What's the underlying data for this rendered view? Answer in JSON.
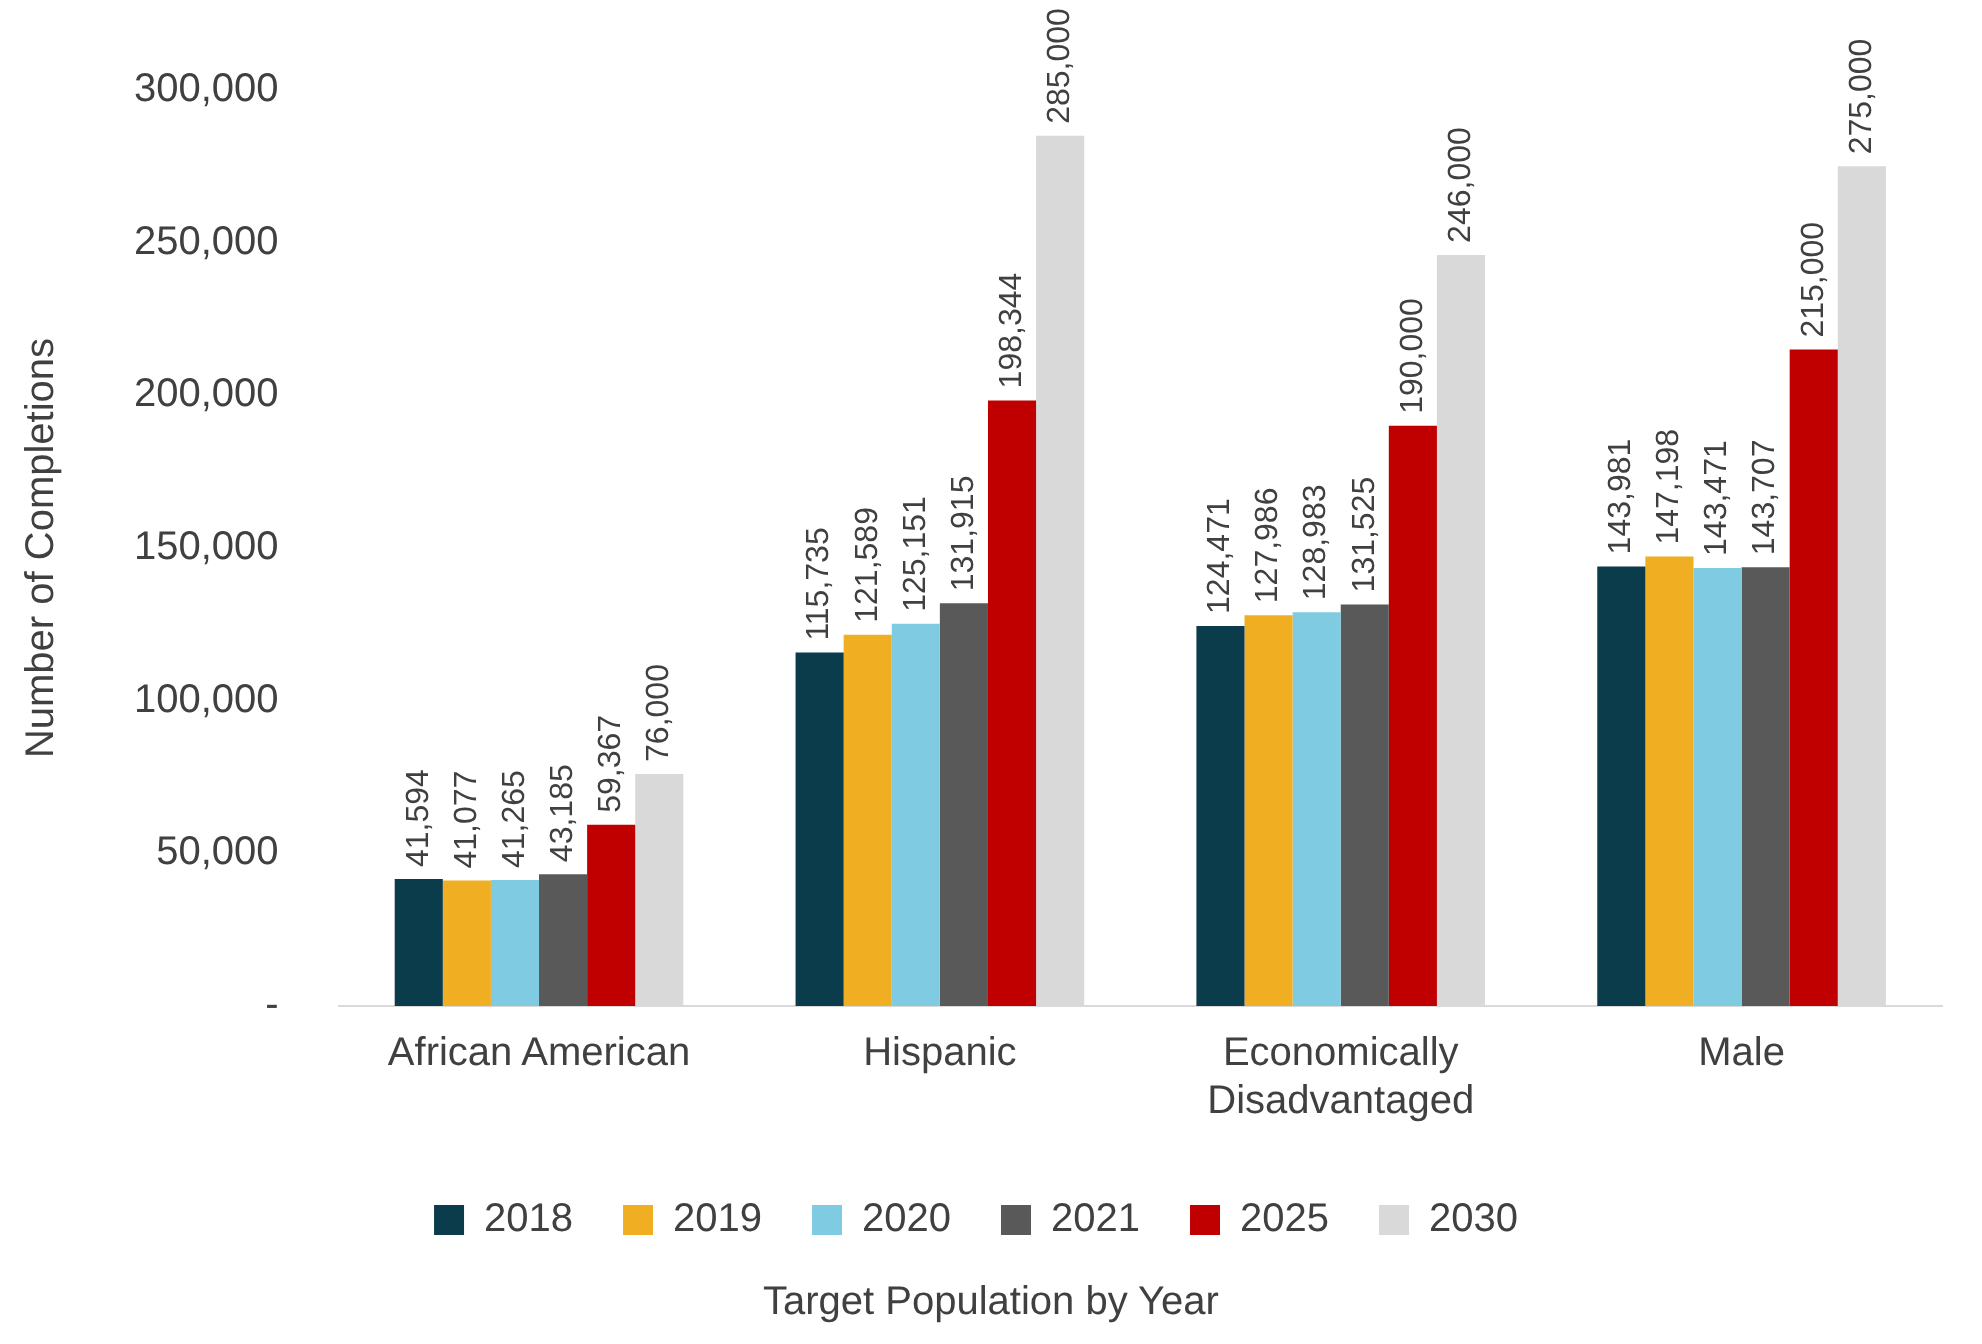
{
  "chart_data": {
    "type": "bar",
    "xlabel": "Target Population by Year",
    "ylabel": "Number of Completions",
    "categories": [
      "African American",
      "Hispanic",
      "Economically Disadvantaged",
      "Male"
    ],
    "series": [
      {
        "name": "2018",
        "color": "#0b3c4c",
        "values": [
          41594,
          115735,
          124471,
          143981
        ],
        "value_labels": [
          "41,594",
          "115,735",
          "124,471",
          "143,981"
        ]
      },
      {
        "name": "2019",
        "color": "#f0ae23",
        "values": [
          41077,
          121589,
          127986,
          147198
        ],
        "value_labels": [
          "41,077",
          "121,589",
          "127,986",
          "147,198"
        ]
      },
      {
        "name": "2020",
        "color": "#7fcce2",
        "values": [
          41265,
          125151,
          128983,
          143471
        ],
        "value_labels": [
          "41,265",
          "125,151",
          "128,983",
          "143,471"
        ]
      },
      {
        "name": "2021",
        "color": "#595959",
        "values": [
          43185,
          131915,
          131525,
          143707
        ],
        "value_labels": [
          "43,185",
          "131,915",
          "131,525",
          "143,707"
        ]
      },
      {
        "name": "2025",
        "color": "#c00000",
        "values": [
          59367,
          198344,
          190000,
          215000
        ],
        "value_labels": [
          "59,367",
          "198,344",
          "190,000",
          "215,000"
        ]
      },
      {
        "name": "2030",
        "color": "#d9d9d9",
        "values": [
          76000,
          285000,
          246000,
          275000
        ],
        "value_labels": [
          "76,000",
          "285,000",
          "246,000",
          "275,000"
        ]
      }
    ],
    "ylim": [
      0,
      300000
    ],
    "yticks": [
      {
        "value": 0,
        "label": "-"
      },
      {
        "value": 50000,
        "label": "50,000"
      },
      {
        "value": 100000,
        "label": "100,000"
      },
      {
        "value": 150000,
        "label": "150,000"
      },
      {
        "value": 200000,
        "label": "200,000"
      },
      {
        "value": 250000,
        "label": "250,000"
      },
      {
        "value": 300000,
        "label": "300,000"
      }
    ],
    "grid": false,
    "legend": "bottom"
  }
}
